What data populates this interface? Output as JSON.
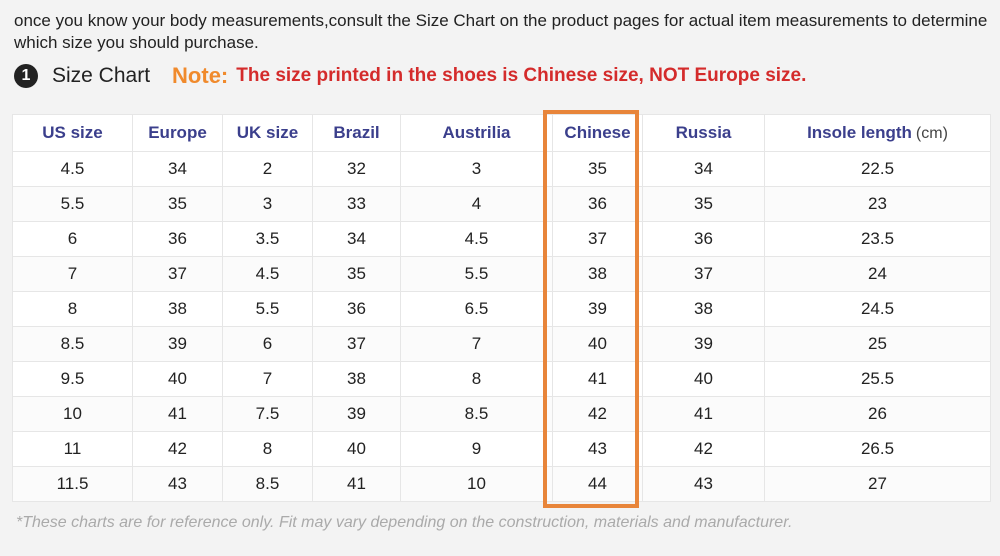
{
  "intro": {
    "text": "once you know your body measurements,consult the Size Chart on the product pages for actual item measurements to determine which size you should purchase."
  },
  "heading": {
    "step_number": "1",
    "title": "Size Chart",
    "note_label": "Note:",
    "note_text": "The size printed in the shoes is Chinese size, NOT Europe size."
  },
  "table": {
    "headers": [
      "US size",
      "Europe",
      "UK size",
      "Brazil",
      "Austrilia",
      "Chinese",
      "Russia",
      "Insole length"
    ],
    "insole_unit": "(cm)",
    "rows": [
      [
        "4.5",
        "34",
        "2",
        "32",
        "3",
        "35",
        "34",
        "22.5"
      ],
      [
        "5.5",
        "35",
        "3",
        "33",
        "4",
        "36",
        "35",
        "23"
      ],
      [
        "6",
        "36",
        "3.5",
        "34",
        "4.5",
        "37",
        "36",
        "23.5"
      ],
      [
        "7",
        "37",
        "4.5",
        "35",
        "5.5",
        "38",
        "37",
        "24"
      ],
      [
        "8",
        "38",
        "5.5",
        "36",
        "6.5",
        "39",
        "38",
        "24.5"
      ],
      [
        "8.5",
        "39",
        "6",
        "37",
        "7",
        "40",
        "39",
        "25"
      ],
      [
        "9.5",
        "40",
        "7",
        "38",
        "8",
        "41",
        "40",
        "25.5"
      ],
      [
        "10",
        "41",
        "7.5",
        "39",
        "8.5",
        "42",
        "41",
        "26"
      ],
      [
        "11",
        "42",
        "8",
        "40",
        "9",
        "43",
        "42",
        "26.5"
      ],
      [
        "11.5",
        "43",
        "8.5",
        "41",
        "10",
        "44",
        "43",
        "27"
      ]
    ],
    "highlight_color": "#e8853a"
  },
  "disclaimer": "*These charts are for reference only. Fit may vary depending on the construction, materials and manufacturer."
}
